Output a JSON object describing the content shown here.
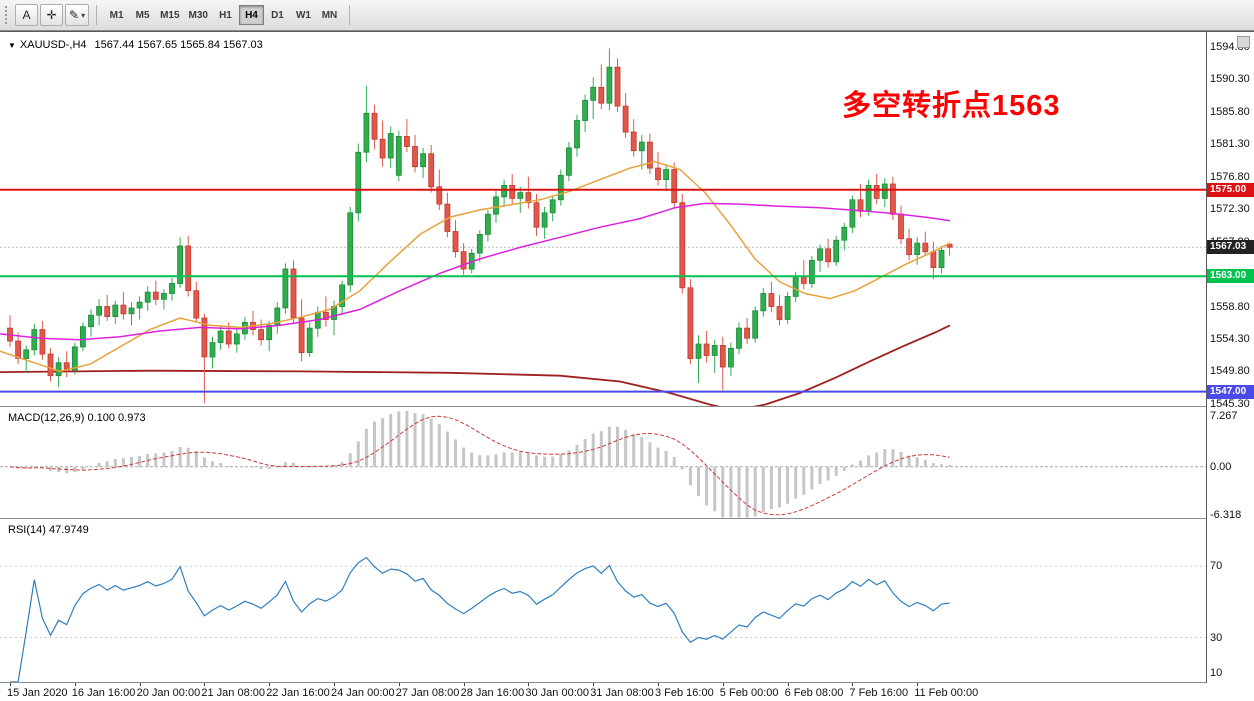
{
  "toolbar": {
    "buttons": [
      {
        "name": "cursor-button",
        "glyph": "A"
      },
      {
        "name": "crosshair-button",
        "glyph": "✛"
      },
      {
        "name": "draw-tools-button",
        "glyph": "✎",
        "caret": "▾"
      }
    ],
    "timeframes": [
      "M1",
      "M5",
      "M15",
      "M30",
      "H1",
      "H4",
      "D1",
      "W1",
      "MN"
    ],
    "active_timeframe": "H4"
  },
  "chart": {
    "collapse_icon": "▼",
    "symbol_title": "XAUUSD-,H4",
    "ohlc_text": "1567.44 1567.65 1565.84 1567.03",
    "annotation": {
      "text": "多空转折点1563",
      "color": "#ff0000"
    },
    "price_axis": [
      "1594.80",
      "1590.30",
      "1585.80",
      "1581.30",
      "1576.80",
      "1572.30",
      "1567.80",
      "1563.30",
      "1558.80",
      "1554.30",
      "1549.80",
      "1545.30"
    ],
    "hlines": [
      {
        "price": 1575.0,
        "label": "1575.00",
        "color": "#dd1111"
      },
      {
        "price": 1563.0,
        "label": "1563.00",
        "color": "#00c24e"
      },
      {
        "price": 1547.0,
        "label": "1547.00",
        "color": "#4a4ae8"
      }
    ],
    "current_price": {
      "value": 1567.03,
      "label": "1567.03",
      "color": "#222222"
    }
  },
  "macd_panel": {
    "label": "MACD(12,26,9) 0.100 0.973",
    "range": [
      -6.318,
      7.267
    ],
    "axis": [
      [
        "7.267",
        7.267
      ],
      [
        "0.00",
        0
      ],
      [
        "-6.318",
        -6.318
      ]
    ]
  },
  "rsi_panel": {
    "label": "RSI(14) 47.9749",
    "range": [
      5,
      96
    ],
    "levels": [
      70,
      30
    ],
    "axis": [
      [
        "70",
        70
      ],
      [
        "30",
        30
      ],
      [
        "10",
        10
      ]
    ]
  },
  "time_axis": [
    "15 Jan 2020",
    "16 Jan 16:00",
    "20 Jan 00:00",
    "21 Jan 08:00",
    "22 Jan 16:00",
    "24 Jan 00:00",
    "27 Jan 08:00",
    "28 Jan 16:00",
    "30 Jan 00:00",
    "31 Jan 08:00",
    "3 Feb 16:00",
    "5 Feb 00:00",
    "6 Feb 08:00",
    "7 Feb 16:00",
    "11 Feb 00:00"
  ],
  "chart_data": {
    "type": "candlestick",
    "symbol": "XAUUSD-",
    "timeframe": "H4",
    "bars_per_label": 8,
    "price_range": [
      1545.0,
      1596.6
    ],
    "candles": [
      [
        1555.8,
        1557.6,
        1553.2,
        1554.0
      ],
      [
        1554.0,
        1555.2,
        1550.8,
        1551.6
      ],
      [
        1551.6,
        1553.4,
        1549.6,
        1552.8
      ],
      [
        1552.8,
        1556.4,
        1552.0,
        1555.6
      ],
      [
        1555.6,
        1556.8,
        1551.4,
        1552.2
      ],
      [
        1552.2,
        1553.0,
        1548.4,
        1549.2
      ],
      [
        1549.2,
        1551.8,
        1547.6,
        1551.0
      ],
      [
        1551.0,
        1552.6,
        1549.0,
        1550.0
      ],
      [
        1550.0,
        1553.8,
        1549.4,
        1553.2
      ],
      [
        1553.2,
        1556.6,
        1552.6,
        1556.0
      ],
      [
        1556.0,
        1558.4,
        1554.6,
        1557.6
      ],
      [
        1557.6,
        1559.8,
        1556.2,
        1558.8
      ],
      [
        1558.8,
        1560.4,
        1556.8,
        1557.4
      ],
      [
        1557.4,
        1559.6,
        1556.4,
        1559.0
      ],
      [
        1559.0,
        1560.8,
        1557.0,
        1557.8
      ],
      [
        1557.8,
        1559.4,
        1556.2,
        1558.6
      ],
      [
        1558.6,
        1560.2,
        1557.0,
        1559.4
      ],
      [
        1559.4,
        1561.6,
        1558.2,
        1560.8
      ],
      [
        1560.8,
        1562.4,
        1559.0,
        1559.8
      ],
      [
        1559.8,
        1561.2,
        1558.4,
        1560.6
      ],
      [
        1560.6,
        1562.8,
        1559.6,
        1562.0
      ],
      [
        1562.0,
        1568.4,
        1561.4,
        1567.2
      ],
      [
        1567.2,
        1568.6,
        1560.2,
        1561.0
      ],
      [
        1561.0,
        1562.2,
        1556.6,
        1557.2
      ],
      [
        1557.2,
        1557.8,
        1545.4,
        1551.8
      ],
      [
        1551.8,
        1554.6,
        1550.2,
        1553.8
      ],
      [
        1553.8,
        1556.2,
        1552.8,
        1555.4
      ],
      [
        1555.4,
        1556.6,
        1553.0,
        1553.6
      ],
      [
        1553.6,
        1555.8,
        1552.4,
        1555.0
      ],
      [
        1555.0,
        1557.4,
        1554.2,
        1556.6
      ],
      [
        1556.6,
        1558.2,
        1554.8,
        1555.6
      ],
      [
        1555.6,
        1557.0,
        1553.4,
        1554.2
      ],
      [
        1554.2,
        1556.8,
        1552.6,
        1556.2
      ],
      [
        1556.2,
        1559.4,
        1555.0,
        1558.6
      ],
      [
        1558.6,
        1564.8,
        1557.8,
        1564.0
      ],
      [
        1564.0,
        1565.2,
        1556.4,
        1557.2
      ],
      [
        1557.2,
        1559.8,
        1551.2,
        1552.4
      ],
      [
        1552.4,
        1556.6,
        1551.8,
        1555.8
      ],
      [
        1555.8,
        1558.8,
        1554.6,
        1558.0
      ],
      [
        1558.0,
        1560.2,
        1556.0,
        1557.0
      ],
      [
        1557.0,
        1559.6,
        1554.8,
        1558.8
      ],
      [
        1558.8,
        1562.4,
        1557.6,
        1561.8
      ],
      [
        1561.8,
        1572.6,
        1560.8,
        1571.8
      ],
      [
        1571.8,
        1581.4,
        1570.6,
        1580.2
      ],
      [
        1580.2,
        1589.4,
        1578.8,
        1585.6
      ],
      [
        1585.6,
        1586.8,
        1580.6,
        1582.0
      ],
      [
        1582.0,
        1584.6,
        1578.2,
        1579.4
      ],
      [
        1579.4,
        1583.8,
        1578.0,
        1582.8
      ],
      [
        1577.0,
        1583.2,
        1576.2,
        1582.4
      ],
      [
        1582.4,
        1584.8,
        1580.2,
        1581.0
      ],
      [
        1581.0,
        1582.6,
        1577.4,
        1578.2
      ],
      [
        1578.2,
        1580.8,
        1576.6,
        1580.0
      ],
      [
        1580.0,
        1581.2,
        1574.6,
        1575.4
      ],
      [
        1575.4,
        1577.8,
        1572.2,
        1573.0
      ],
      [
        1573.0,
        1574.6,
        1568.4,
        1569.2
      ],
      [
        1569.2,
        1570.8,
        1565.6,
        1566.4
      ],
      [
        1566.4,
        1567.6,
        1563.2,
        1564.0
      ],
      [
        1564.0,
        1566.8,
        1563.4,
        1566.2
      ],
      [
        1566.2,
        1569.4,
        1565.0,
        1568.8
      ],
      [
        1568.8,
        1572.2,
        1567.8,
        1571.6
      ],
      [
        1571.6,
        1574.8,
        1570.4,
        1574.0
      ],
      [
        1574.0,
        1576.4,
        1572.6,
        1575.6
      ],
      [
        1575.6,
        1577.2,
        1573.0,
        1573.8
      ],
      [
        1573.8,
        1575.4,
        1571.8,
        1574.6
      ],
      [
        1574.6,
        1576.8,
        1572.4,
        1573.2
      ],
      [
        1573.2,
        1574.4,
        1568.6,
        1569.8
      ],
      [
        1569.8,
        1572.6,
        1568.2,
        1571.8
      ],
      [
        1571.8,
        1574.2,
        1570.6,
        1573.6
      ],
      [
        1573.6,
        1577.8,
        1572.8,
        1577.0
      ],
      [
        1577.0,
        1581.6,
        1576.2,
        1580.8
      ],
      [
        1580.8,
        1585.4,
        1579.6,
        1584.6
      ],
      [
        1584.6,
        1588.2,
        1583.0,
        1587.4
      ],
      [
        1587.4,
        1590.6,
        1584.8,
        1589.2
      ],
      [
        1589.2,
        1592.4,
        1586.2,
        1587.0
      ],
      [
        1587.0,
        1594.6,
        1586.0,
        1592.0
      ],
      [
        1592.0,
        1593.2,
        1585.8,
        1586.6
      ],
      [
        1586.6,
        1588.4,
        1582.2,
        1583.0
      ],
      [
        1583.0,
        1584.8,
        1579.6,
        1580.4
      ],
      [
        1580.4,
        1582.6,
        1577.8,
        1581.6
      ],
      [
        1581.6,
        1582.8,
        1577.2,
        1578.0
      ],
      [
        1578.0,
        1580.2,
        1575.6,
        1576.4
      ],
      [
        1576.4,
        1578.6,
        1574.8,
        1577.8
      ],
      [
        1577.8,
        1578.8,
        1572.4,
        1573.2
      ],
      [
        1573.2,
        1574.4,
        1560.6,
        1561.4
      ],
      [
        1561.4,
        1562.6,
        1550.8,
        1551.6
      ],
      [
        1551.6,
        1554.8,
        1548.2,
        1553.6
      ],
      [
        1553.6,
        1555.4,
        1551.0,
        1552.0
      ],
      [
        1552.0,
        1554.2,
        1549.6,
        1553.4
      ],
      [
        1553.4,
        1554.6,
        1547.2,
        1550.4
      ],
      [
        1550.4,
        1553.8,
        1549.2,
        1553.0
      ],
      [
        1553.0,
        1556.6,
        1552.2,
        1555.8
      ],
      [
        1555.8,
        1557.2,
        1553.6,
        1554.4
      ],
      [
        1554.4,
        1558.8,
        1553.8,
        1558.2
      ],
      [
        1558.2,
        1561.4,
        1557.4,
        1560.6
      ],
      [
        1560.6,
        1562.2,
        1558.0,
        1558.8
      ],
      [
        1558.8,
        1560.4,
        1556.2,
        1557.0
      ],
      [
        1557.0,
        1560.8,
        1556.4,
        1560.2
      ],
      [
        1560.2,
        1563.6,
        1559.4,
        1563.0
      ],
      [
        1563.0,
        1565.2,
        1561.2,
        1562.0
      ],
      [
        1562.0,
        1565.8,
        1561.4,
        1565.2
      ],
      [
        1565.2,
        1567.4,
        1563.6,
        1566.8
      ],
      [
        1566.8,
        1568.2,
        1564.2,
        1565.0
      ],
      [
        1565.0,
        1568.6,
        1564.4,
        1568.0
      ],
      [
        1568.0,
        1570.4,
        1566.6,
        1569.8
      ],
      [
        1569.8,
        1574.2,
        1569.0,
        1573.6
      ],
      [
        1573.6,
        1575.8,
        1571.2,
        1572.0
      ],
      [
        1572.0,
        1576.4,
        1571.4,
        1575.6
      ],
      [
        1575.6,
        1577.2,
        1573.0,
        1573.8
      ],
      [
        1573.8,
        1576.6,
        1572.6,
        1575.8
      ],
      [
        1575.8,
        1576.8,
        1570.8,
        1571.6
      ],
      [
        1571.6,
        1572.8,
        1567.4,
        1568.2
      ],
      [
        1568.2,
        1569.6,
        1565.2,
        1566.0
      ],
      [
        1566.0,
        1568.4,
        1564.6,
        1567.6
      ],
      [
        1567.6,
        1569.2,
        1565.8,
        1566.4
      ],
      [
        1566.4,
        1567.8,
        1562.6,
        1564.2
      ],
      [
        1564.2,
        1567.2,
        1563.4,
        1566.6
      ],
      [
        1567.44,
        1567.65,
        1565.84,
        1567.03
      ]
    ],
    "ma_fast_orange": [
      [
        0,
        1552.6
      ],
      [
        30,
        1551.2
      ],
      [
        60,
        1549.8
      ],
      [
        90,
        1550.8
      ],
      [
        120,
        1553.2
      ],
      [
        150,
        1555.6
      ],
      [
        180,
        1557.2
      ],
      [
        210,
        1556.2
      ],
      [
        240,
        1555.9
      ],
      [
        270,
        1556.4
      ],
      [
        300,
        1557.3
      ],
      [
        330,
        1558.4
      ],
      [
        360,
        1561.0
      ],
      [
        390,
        1565.0
      ],
      [
        420,
        1568.8
      ],
      [
        450,
        1571.2
      ],
      [
        480,
        1572.2
      ],
      [
        510,
        1572.9
      ],
      [
        540,
        1573.6
      ],
      [
        570,
        1574.8
      ],
      [
        600,
        1576.4
      ],
      [
        630,
        1578.0
      ],
      [
        655,
        1578.9
      ],
      [
        680,
        1577.8
      ],
      [
        705,
        1574.6
      ],
      [
        730,
        1570.2
      ],
      [
        755,
        1565.4
      ],
      [
        780,
        1562.2
      ],
      [
        805,
        1560.6
      ],
      [
        830,
        1559.9
      ],
      [
        855,
        1561.0
      ],
      [
        880,
        1562.8
      ],
      [
        905,
        1564.6
      ],
      [
        930,
        1566.2
      ],
      [
        950,
        1567.6
      ]
    ],
    "ma_slow_magenta": [
      [
        0,
        1555.0
      ],
      [
        40,
        1554.4
      ],
      [
        80,
        1554.2
      ],
      [
        120,
        1554.6
      ],
      [
        160,
        1555.4
      ],
      [
        200,
        1555.9
      ],
      [
        240,
        1555.7
      ],
      [
        280,
        1556.2
      ],
      [
        320,
        1557.0
      ],
      [
        360,
        1558.4
      ],
      [
        400,
        1561.0
      ],
      [
        440,
        1563.4
      ],
      [
        480,
        1565.4
      ],
      [
        520,
        1567.0
      ],
      [
        560,
        1568.4
      ],
      [
        600,
        1569.8
      ],
      [
        640,
        1571.0
      ],
      [
        675,
        1572.5
      ],
      [
        705,
        1573.1
      ],
      [
        740,
        1573.0
      ],
      [
        780,
        1572.7
      ],
      [
        820,
        1572.5
      ],
      [
        860,
        1572.1
      ],
      [
        900,
        1571.6
      ],
      [
        930,
        1571.1
      ],
      [
        950,
        1570.7
      ]
    ],
    "ma_long_darkred": [
      [
        0,
        1549.7
      ],
      [
        150,
        1549.9
      ],
      [
        300,
        1549.8
      ],
      [
        450,
        1549.6
      ],
      [
        560,
        1549.2
      ],
      [
        620,
        1548.4
      ],
      [
        670,
        1546.8
      ],
      [
        710,
        1545.2
      ],
      [
        735,
        1544.4
      ],
      [
        765,
        1545.2
      ],
      [
        800,
        1546.8
      ],
      [
        835,
        1548.9
      ],
      [
        870,
        1551.2
      ],
      [
        905,
        1553.4
      ],
      [
        935,
        1555.2
      ],
      [
        950,
        1556.2
      ]
    ]
  },
  "colors": {
    "candle_up": "#2fae4d",
    "candle_up_border": "#1d8a39",
    "candle_down": "#e2574b",
    "candle_down_border": "#bf3a2e",
    "ma_fast": "#e8a23c",
    "ma_slow": "#dd22dd",
    "ma_long": "#a01f1f",
    "macd_hist": "#c6c6c6",
    "macd_signal": "#cc3b3b",
    "rsi_line": "#2f7fc1",
    "rsi_level": "#cdcdcd",
    "current_price_line": "#b8b8b8"
  }
}
